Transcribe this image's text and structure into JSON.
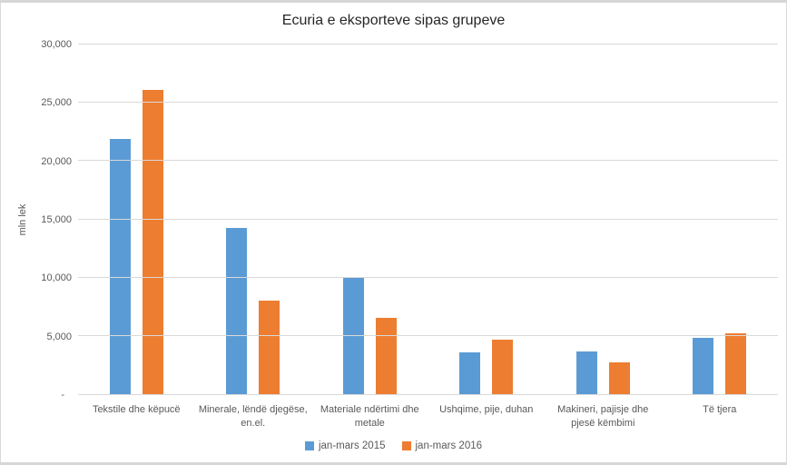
{
  "chart_data": {
    "type": "bar",
    "title": "Ecuria e eksporteve sipas grupeve",
    "ylabel": "mln lek",
    "xlabel": "",
    "categories": [
      "Tekstile dhe këpucë",
      "Minerale, lëndë djegëse, en.el.",
      "Materiale ndërtimi dhe metale",
      "Ushqime, pije, duhan",
      "Makineri, pajisje dhe pjesë këmbimi",
      "Të tjera"
    ],
    "series": [
      {
        "name": "jan-mars 2015",
        "color": "#5B9BD5",
        "values": [
          21900,
          14250,
          10000,
          3600,
          3650,
          4850
        ]
      },
      {
        "name": "jan-mars 2016",
        "color": "#ED7D31",
        "values": [
          26100,
          8000,
          6550,
          4700,
          2700,
          5200
        ]
      }
    ],
    "ylim": [
      0,
      30000
    ],
    "ytick_step": 5000,
    "ytick_labels": [
      "-",
      "5,000",
      "10,000",
      "15,000",
      "20,000",
      "25,000",
      "30,000"
    ],
    "grid": true,
    "legend_position": "bottom"
  },
  "colors": {
    "series_2015": "#5B9BD5",
    "series_2016": "#ED7D31",
    "gridline": "#d9d9d9",
    "axis_text": "#595959",
    "title_text": "#262626"
  }
}
